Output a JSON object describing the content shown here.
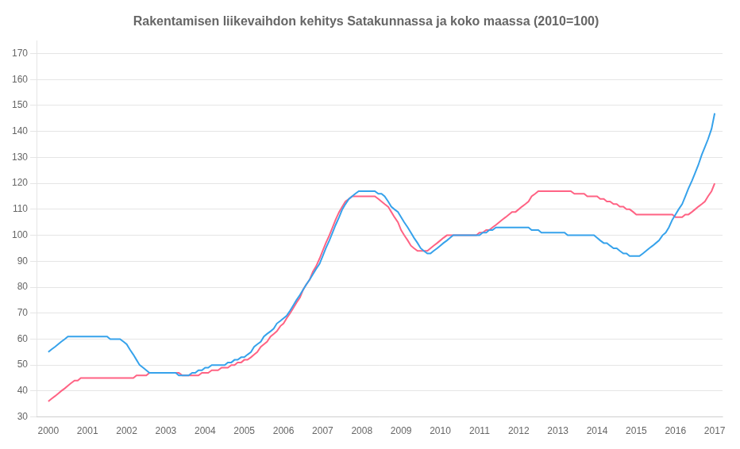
{
  "chart_data": {
    "type": "line",
    "title": "Rakentamisen liikevaihdon kehitys Satakunnassa ja koko maassa (2010=100)",
    "xlim": [
      1999.7,
      2017.2
    ],
    "xticks": [
      2000,
      2001,
      2002,
      2003,
      2004,
      2005,
      2006,
      2007,
      2008,
      2009,
      2010,
      2011,
      2012,
      2013,
      2014,
      2015,
      2016,
      2017
    ],
    "ylim": [
      30,
      175
    ],
    "yticks": [
      30,
      40,
      50,
      60,
      70,
      80,
      90,
      100,
      110,
      120,
      130,
      140,
      150,
      160,
      170
    ],
    "grid": "y",
    "x": [
      2000.0,
      2000.08,
      2000.17,
      2000.25,
      2000.33,
      2000.42,
      2000.5,
      2000.58,
      2000.67,
      2000.75,
      2000.83,
      2000.92,
      2001.0,
      2001.08,
      2001.17,
      2001.25,
      2001.33,
      2001.42,
      2001.5,
      2001.58,
      2001.67,
      2001.75,
      2001.83,
      2001.92,
      2002.0,
      2002.08,
      2002.17,
      2002.25,
      2002.33,
      2002.42,
      2002.5,
      2002.58,
      2002.67,
      2002.75,
      2002.83,
      2002.92,
      2003.0,
      2003.08,
      2003.17,
      2003.25,
      2003.33,
      2003.42,
      2003.5,
      2003.58,
      2003.67,
      2003.75,
      2003.83,
      2003.92,
      2004.0,
      2004.08,
      2004.17,
      2004.25,
      2004.33,
      2004.42,
      2004.5,
      2004.58,
      2004.67,
      2004.75,
      2004.83,
      2004.92,
      2005.0,
      2005.08,
      2005.17,
      2005.25,
      2005.33,
      2005.42,
      2005.5,
      2005.58,
      2005.67,
      2005.75,
      2005.83,
      2005.92,
      2006.0,
      2006.08,
      2006.17,
      2006.25,
      2006.33,
      2006.42,
      2006.5,
      2006.58,
      2006.67,
      2006.75,
      2006.83,
      2006.92,
      2007.0,
      2007.08,
      2007.17,
      2007.25,
      2007.33,
      2007.42,
      2007.5,
      2007.58,
      2007.67,
      2007.75,
      2007.83,
      2007.92,
      2008.0,
      2008.08,
      2008.17,
      2008.25,
      2008.33,
      2008.42,
      2008.5,
      2008.58,
      2008.67,
      2008.75,
      2008.83,
      2008.92,
      2009.0,
      2009.08,
      2009.17,
      2009.25,
      2009.33,
      2009.42,
      2009.5,
      2009.58,
      2009.67,
      2009.75,
      2009.83,
      2009.92,
      2010.0,
      2010.08,
      2010.17,
      2010.25,
      2010.33,
      2010.42,
      2010.5,
      2010.58,
      2010.67,
      2010.75,
      2010.83,
      2010.92,
      2011.0,
      2011.08,
      2011.17,
      2011.25,
      2011.33,
      2011.42,
      2011.5,
      2011.58,
      2011.67,
      2011.75,
      2011.83,
      2011.92,
      2012.0,
      2012.08,
      2012.17,
      2012.25,
      2012.33,
      2012.42,
      2012.5,
      2012.58,
      2012.67,
      2012.75,
      2012.83,
      2012.92,
      2013.0,
      2013.08,
      2013.17,
      2013.25,
      2013.33,
      2013.42,
      2013.5,
      2013.58,
      2013.67,
      2013.75,
      2013.83,
      2013.92,
      2014.0,
      2014.08,
      2014.17,
      2014.25,
      2014.33,
      2014.42,
      2014.5,
      2014.58,
      2014.67,
      2014.75,
      2014.83,
      2014.92,
      2015.0,
      2015.08,
      2015.17,
      2015.25,
      2015.33,
      2015.42,
      2015.5,
      2015.58,
      2015.67,
      2015.75,
      2015.83,
      2015.92,
      2016.0,
      2016.08,
      2016.17,
      2016.25,
      2016.33,
      2016.42,
      2016.5,
      2016.58,
      2016.67,
      2016.75,
      2016.83,
      2016.92,
      2017.0
    ],
    "series": [
      {
        "values": [
          55,
          56,
          57,
          58,
          59,
          60,
          61,
          61,
          61,
          61,
          61,
          61,
          61,
          61,
          61,
          61,
          61,
          61,
          61,
          60,
          60,
          60,
          60,
          59,
          58,
          56,
          54,
          52,
          50,
          49,
          48,
          47,
          47,
          47,
          47,
          47,
          47,
          47,
          47,
          47,
          46,
          46,
          46,
          46,
          47,
          47,
          48,
          48,
          49,
          49,
          50,
          50,
          50,
          50,
          50,
          51,
          51,
          52,
          52,
          53,
          53,
          54,
          55,
          57,
          58,
          59,
          61,
          62,
          63,
          64,
          66,
          67,
          68,
          69,
          71,
          73,
          75,
          77,
          79,
          81,
          83,
          85,
          87,
          89,
          92,
          95,
          98,
          101,
          104,
          107,
          110,
          112,
          114,
          115,
          116,
          117,
          117,
          117,
          117,
          117,
          117,
          116,
          116,
          115,
          113,
          111,
          110,
          109,
          107,
          105,
          103,
          101,
          99,
          97,
          95,
          94,
          93,
          93,
          94,
          95,
          96,
          97,
          98,
          99,
          100,
          100,
          100,
          100,
          100,
          100,
          100,
          100,
          100,
          101,
          101,
          102,
          102,
          103,
          103,
          103,
          103,
          103,
          103,
          103,
          103,
          103,
          103,
          103,
          102,
          102,
          102,
          101,
          101,
          101,
          101,
          101,
          101,
          101,
          101,
          100,
          100,
          100,
          100,
          100,
          100,
          100,
          100,
          100,
          99,
          98,
          97,
          97,
          96,
          95,
          95,
          94,
          93,
          93,
          92,
          92,
          92,
          92,
          93,
          94,
          95,
          96,
          97,
          98,
          100,
          101,
          103,
          106,
          108,
          110,
          112,
          115,
          118,
          121,
          124,
          127,
          131,
          134,
          137,
          141,
          147
        ]
      },
      {
        "values": [
          36,
          37,
          38,
          39,
          40,
          41,
          42,
          43,
          44,
          44,
          45,
          45,
          45,
          45,
          45,
          45,
          45,
          45,
          45,
          45,
          45,
          45,
          45,
          45,
          45,
          45,
          45,
          46,
          46,
          46,
          46,
          47,
          47,
          47,
          47,
          47,
          47,
          47,
          47,
          47,
          47,
          46,
          46,
          46,
          46,
          46,
          46,
          47,
          47,
          47,
          48,
          48,
          48,
          49,
          49,
          49,
          50,
          50,
          51,
          51,
          52,
          52,
          53,
          54,
          55,
          57,
          58,
          59,
          61,
          62,
          63,
          65,
          66,
          68,
          70,
          72,
          74,
          76,
          79,
          81,
          83,
          86,
          88,
          91,
          94,
          97,
          100,
          103,
          106,
          109,
          111,
          113,
          114,
          115,
          115,
          115,
          115,
          115,
          115,
          115,
          115,
          114,
          113,
          112,
          111,
          109,
          107,
          105,
          102,
          100,
          98,
          96,
          95,
          94,
          94,
          94,
          94,
          95,
          96,
          97,
          98,
          99,
          100,
          100,
          100,
          100,
          100,
          100,
          100,
          100,
          100,
          100,
          101,
          101,
          102,
          102,
          103,
          104,
          105,
          106,
          107,
          108,
          109,
          109,
          110,
          111,
          112,
          113,
          115,
          116,
          117,
          117,
          117,
          117,
          117,
          117,
          117,
          117,
          117,
          117,
          117,
          116,
          116,
          116,
          116,
          115,
          115,
          115,
          115,
          114,
          114,
          113,
          113,
          112,
          112,
          111,
          111,
          110,
          110,
          109,
          108,
          108,
          108,
          108,
          108,
          108,
          108,
          108,
          108,
          108,
          108,
          108,
          107,
          107,
          107,
          108,
          108,
          109,
          110,
          111,
          112,
          113,
          115,
          117,
          120
        ]
      }
    ]
  }
}
